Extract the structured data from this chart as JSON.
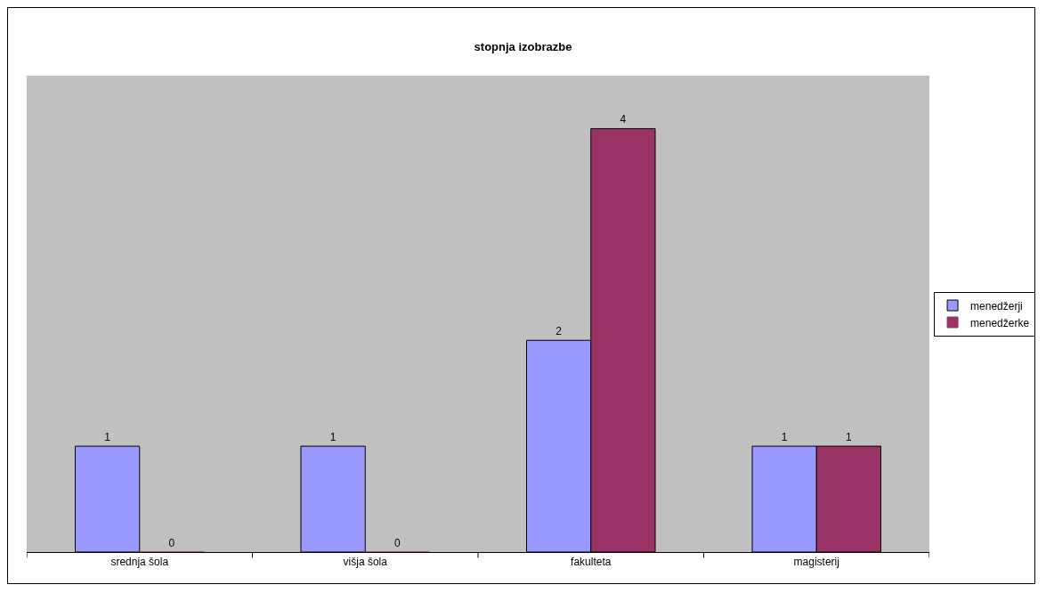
{
  "chart_data": {
    "type": "bar",
    "title": "stopnja izobrazbe",
    "categories": [
      "srednja šola",
      "višja šola",
      "fakulteta",
      "magisterij"
    ],
    "series": [
      {
        "name": "menedžerji",
        "color": "#9999ff",
        "values": [
          1,
          1,
          2,
          1
        ]
      },
      {
        "name": "menedžerke",
        "color": "#993366",
        "values": [
          0,
          0,
          4,
          1
        ]
      }
    ],
    "ylim": [
      0,
      4.5
    ],
    "tick_labels": "x",
    "data_labels": true,
    "grid": false,
    "legend": "right"
  }
}
